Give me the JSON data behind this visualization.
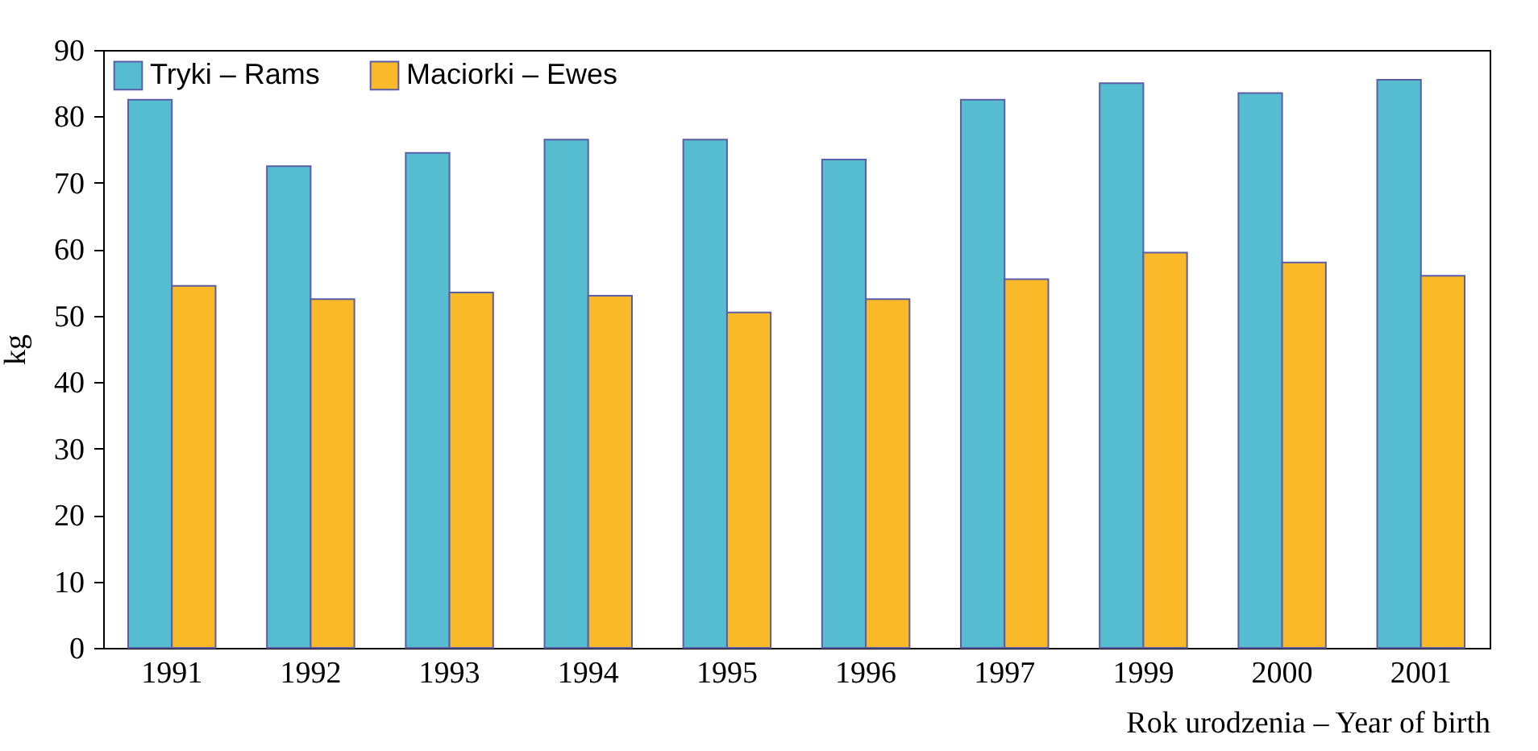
{
  "chart_data": {
    "type": "bar",
    "xlabel": "Rok urodzenia – Year of birth",
    "ylabel": "kg",
    "categories": [
      "1991",
      "1992",
      "1993",
      "1994",
      "1995",
      "1996",
      "1997",
      "1999",
      "2000",
      "2001"
    ],
    "series": [
      {
        "name": "Tryki – Rams",
        "color": "#56bdd1",
        "values": [
          82.5,
          72.5,
          74.5,
          76.5,
          76.5,
          73.5,
          82.5,
          85,
          83.5,
          85.5
        ]
      },
      {
        "name": "Maciorki – Ewes",
        "color": "#f9b928",
        "values": [
          54.5,
          52.5,
          53.5,
          53,
          50.5,
          52.5,
          55.5,
          59.5,
          58,
          56
        ]
      }
    ],
    "ylim": [
      0,
      90
    ],
    "yticks": [
      0,
      10,
      20,
      30,
      40,
      50,
      60,
      70,
      80,
      90
    ],
    "grid": false,
    "legend": "top left"
  }
}
